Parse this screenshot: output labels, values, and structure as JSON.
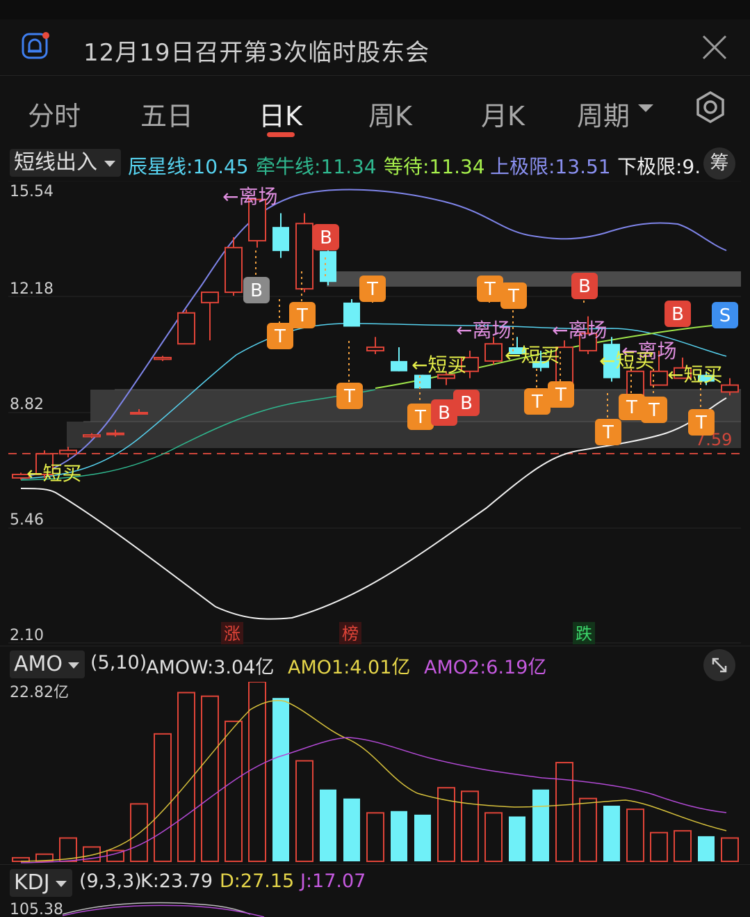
{
  "notice": {
    "title": "12月19日召开第3次临时股东会"
  },
  "tabs": [
    {
      "label": "分时"
    },
    {
      "label": "五日"
    },
    {
      "label": "日K"
    },
    {
      "label": "周K"
    },
    {
      "label": "月K"
    },
    {
      "label": "周期"
    }
  ],
  "indicator": {
    "name": "短线出入",
    "items": [
      {
        "label": "辰星线:10.45",
        "color": "#57d3f0"
      },
      {
        "label": "牵牛线:11.34",
        "color": "#2fb88f"
      },
      {
        "label": "等待:11.34",
        "color": "#a6f04c"
      },
      {
        "label": "上极限:13.51",
        "color": "#8a90f0"
      },
      {
        "label": "下极限:9.",
        "color": "#f0f0f0"
      }
    ],
    "chip_label": "筹"
  },
  "main_chart": {
    "y_ticks": [
      "15.54",
      "12.18",
      "8.82",
      "5.46",
      "2.10"
    ],
    "ref_price": "7.59",
    "markers": {
      "zhang": "涨",
      "bang": "榜",
      "die": "跌"
    },
    "signals": {
      "leave": "←离场",
      "short_buy": "←短买",
      "short_buy_b": "←短买"
    },
    "badges": {
      "B": "B",
      "T": "T",
      "S": "S"
    }
  },
  "amo": {
    "name": "AMO",
    "params": "(5,10)",
    "amow": "AMOW:3.04亿",
    "amo1": "AMO1:4.01亿",
    "amo2": "AMO2:6.19亿",
    "y_top": "22.82亿"
  },
  "kdj": {
    "name": "KDJ",
    "params": "(9,3,3)",
    "k": "K:23.79",
    "d": "D:27.15",
    "j": "J:17.07",
    "y_top": "105.38"
  },
  "chart_data": {
    "type": "candlestick",
    "y_range": [
      2.1,
      15.54
    ],
    "candles": [
      {
        "o": 6.9,
        "c": 7.0,
        "h": 7.05,
        "l": 6.85,
        "up": true
      },
      {
        "o": 7.0,
        "c": 7.6,
        "h": 7.7,
        "l": 6.9,
        "up": true
      },
      {
        "o": 7.6,
        "c": 7.7,
        "h": 7.8,
        "l": 7.5,
        "up": true
      },
      {
        "o": 8.1,
        "c": 8.15,
        "h": 8.2,
        "l": 8.05,
        "up": true
      },
      {
        "o": 8.2,
        "c": 8.2,
        "h": 8.3,
        "l": 8.1,
        "up": true
      },
      {
        "o": 8.8,
        "c": 8.8,
        "h": 8.9,
        "l": 8.75,
        "up": true
      },
      {
        "o": 10.4,
        "c": 10.35,
        "h": 10.45,
        "l": 10.3,
        "up": true
      },
      {
        "o": 10.8,
        "c": 11.7,
        "h": 11.8,
        "l": 10.8,
        "up": true
      },
      {
        "o": 12.0,
        "c": 12.3,
        "h": 12.3,
        "l": 10.9,
        "up": true
      },
      {
        "o": 12.3,
        "c": 13.6,
        "h": 13.9,
        "l": 12.2,
        "up": true
      },
      {
        "o": 13.8,
        "c": 15.0,
        "h": 15.0,
        "l": 13.6,
        "up": true
      },
      {
        "o": 14.2,
        "c": 13.5,
        "h": 14.6,
        "l": 13.3,
        "up": false
      },
      {
        "o": 12.4,
        "c": 14.3,
        "h": 14.6,
        "l": 12.3,
        "up": true
      },
      {
        "o": 13.5,
        "c": 12.6,
        "h": 13.9,
        "l": 12.5,
        "up": false
      },
      {
        "o": 12.0,
        "c": 11.3,
        "h": 12.1,
        "l": 11.3,
        "up": false
      },
      {
        "o": 10.6,
        "c": 10.7,
        "h": 11.0,
        "l": 10.5,
        "up": true
      },
      {
        "o": 10.3,
        "c": 10.0,
        "h": 10.7,
        "l": 10.0,
        "up": false
      },
      {
        "o": 9.9,
        "c": 9.5,
        "h": 9.9,
        "l": 9.5,
        "up": false
      },
      {
        "o": 9.8,
        "c": 9.9,
        "h": 10.0,
        "l": 9.6,
        "up": true
      },
      {
        "o": 10.0,
        "c": 10.4,
        "h": 10.6,
        "l": 9.8,
        "up": true
      },
      {
        "o": 10.3,
        "c": 10.8,
        "h": 11.0,
        "l": 10.2,
        "up": true
      },
      {
        "o": 10.7,
        "c": 10.5,
        "h": 11.0,
        "l": 10.5,
        "up": false
      },
      {
        "o": 10.3,
        "c": 10.1,
        "h": 10.6,
        "l": 10.0,
        "up": false
      },
      {
        "o": 9.5,
        "c": 10.7,
        "h": 10.9,
        "l": 9.5,
        "up": true
      },
      {
        "o": 10.6,
        "c": 11.1,
        "h": 11.6,
        "l": 10.5,
        "up": true
      },
      {
        "o": 10.8,
        "c": 9.8,
        "h": 11.0,
        "l": 9.7,
        "up": false
      },
      {
        "o": 9.3,
        "c": 10.0,
        "h": 10.0,
        "l": 9.2,
        "up": true
      },
      {
        "o": 9.6,
        "c": 10.0,
        "h": 10.6,
        "l": 9.6,
        "up": true
      },
      {
        "o": 9.8,
        "c": 10.1,
        "h": 10.4,
        "l": 9.8,
        "up": true
      },
      {
        "o": 9.9,
        "c": 9.7,
        "h": 10.0,
        "l": 9.6,
        "up": false
      },
      {
        "o": 9.4,
        "c": 9.6,
        "h": 9.8,
        "l": 9.3,
        "up": true
      }
    ]
  }
}
